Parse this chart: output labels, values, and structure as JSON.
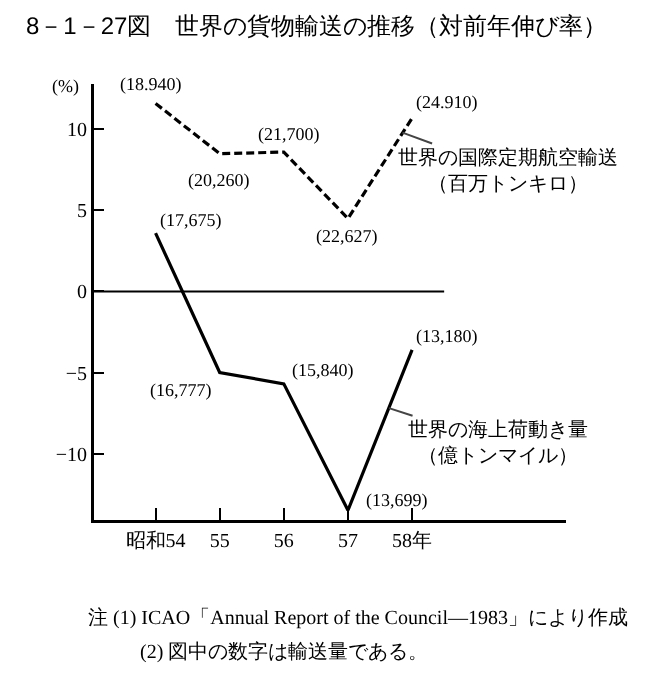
{
  "chart_data": {
    "type": "line",
    "title": "8－1－27図　世界の貨物輸送の推移（対前年伸び率）",
    "ylabel": "(%)",
    "x": [
      54,
      55,
      56,
      57,
      58
    ],
    "xlim": [
      53.04,
      60.4
    ],
    "xticks": [
      {
        "value": 54,
        "label": "昭和54"
      },
      {
        "value": 55,
        "label": "55"
      },
      {
        "value": 56,
        "label": "56"
      },
      {
        "value": 57,
        "label": "57"
      },
      {
        "value": 58,
        "label": "58年"
      }
    ],
    "ylim": [
      -14.1,
      12.8
    ],
    "yticks": [
      {
        "value": -10,
        "label": "−10"
      },
      {
        "value": -5,
        "label": "−5"
      },
      0,
      5,
      10
    ],
    "series": [
      {
        "name": "世界の国際定期航空輸送（百万トンキロ）",
        "color": "#000000",
        "line_style": "dashed",
        "values": [
          11.6,
          8.5,
          8.6,
          4.5,
          10.7
        ]
      },
      {
        "name": "世界の海上荷動き量（億トンマイル）",
        "color": "#000000",
        "line_style": "solid",
        "values": [
          3.6,
          -5.0,
          -5.7,
          -13.5,
          -3.6
        ]
      }
    ],
    "ref_lines": [
      {
        "axis": "y",
        "value": 0,
        "color": "#000000"
      }
    ],
    "legend": false,
    "grid": false,
    "marker": "none",
    "annotations": [
      {
        "text": "(18.940)",
        "x": 54,
        "y": 11.6
      },
      {
        "text": "(20,260)",
        "x": 55,
        "y": 8.5
      },
      {
        "text": "(21,700)",
        "x": 56,
        "y": 8.6
      },
      {
        "text": "(22,627)",
        "x": 57,
        "y": 4.5
      },
      {
        "text": "(24.910)",
        "x": 58,
        "y": 10.7
      },
      {
        "text": "(17,675)",
        "x": 54,
        "y": 3.6
      },
      {
        "text": "(16,777)",
        "x": 55,
        "y": -5.0
      },
      {
        "text": "(15,840)",
        "x": 56,
        "y": -5.7
      },
      {
        "text": "(13,699)",
        "x": 57,
        "y": -13.5
      },
      {
        "text": "(13,180)",
        "x": 58,
        "y": -3.6
      },
      "注 (1) ICAO「Annual Report of the Council―1983」により作成",
      "(2) 図中の数字は輸送量である。"
    ]
  }
}
